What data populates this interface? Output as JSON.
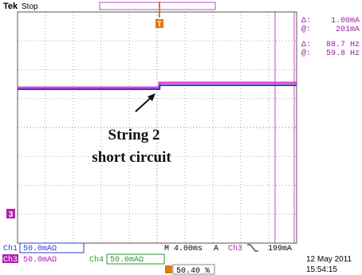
{
  "header": {
    "brand": "Tek",
    "status": "Stop"
  },
  "markers": {
    "trigger": "T",
    "channel": "3"
  },
  "readouts": [
    {
      "symbol": "Δ:",
      "value": "1.00mA"
    },
    {
      "symbol": "@:",
      "value": "201mA"
    },
    {
      "symbol": "Δ:",
      "value": "88.7 Hz"
    },
    {
      "symbol": "@:",
      "value": "59.8 Hz"
    }
  ],
  "annotation": [
    "String 2",
    "short circuit"
  ],
  "channels": [
    {
      "label": "Ch1",
      "scale": "50.0mAΩ"
    },
    {
      "label": "Ch3",
      "scale": "50.0mAΩ"
    },
    {
      "label": "Ch4",
      "scale": "50.0mAΩ"
    }
  ],
  "timebase": "M 4.00ms",
  "trigger": {
    "mode": "A",
    "source": "Ch3",
    "level": "199mA"
  },
  "position": "50.40 %",
  "date": "12 May 2011",
  "time": "15:54:15"
}
